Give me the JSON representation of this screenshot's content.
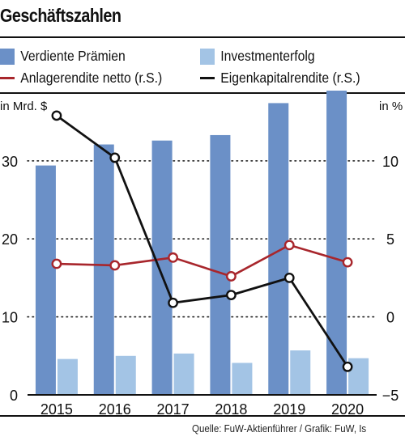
{
  "header": {
    "title": "Geschäftszahlen"
  },
  "legend": {
    "items": [
      {
        "label": "Verdiente Prämien",
        "color": "#6b90c7",
        "kind": "bar"
      },
      {
        "label": "Investmenterfolg",
        "color": "#a3c4e5",
        "kind": "bar"
      },
      {
        "label": "Anlagerendite netto (r.S.)",
        "color": "#a8262c",
        "kind": "line"
      },
      {
        "label": "Eigenkapitalrendite (r.S.)",
        "color": "#111111",
        "kind": "line"
      }
    ]
  },
  "footer": {
    "source": "Quelle: FuW-Aktienführer / Grafik: FuW, Is"
  },
  "chart_data": {
    "type": "bar",
    "title": "Geschäftszahlen",
    "categories": [
      "2015",
      "2016",
      "2017",
      "2018",
      "2019",
      "2020"
    ],
    "y_left": {
      "label": "in Mrd. $",
      "ylim": [
        0,
        39
      ],
      "ticks": [
        0,
        10,
        20,
        30
      ]
    },
    "y_right": {
      "label": "in %",
      "ylim": [
        -5,
        14.5
      ],
      "ticks": [
        -5,
        0,
        5,
        10
      ]
    },
    "grid": "dotted horizontal at left-axis ticks",
    "legend_position": "top",
    "series": [
      {
        "name": "Verdiente Prämien",
        "type": "bar",
        "axis": "left",
        "color": "#6b90c7",
        "values": [
          29.4,
          32.1,
          32.6,
          33.3,
          37.4,
          39.0
        ]
      },
      {
        "name": "Investmenterfolg",
        "type": "bar",
        "axis": "left",
        "color": "#a3c4e5",
        "values": [
          4.6,
          5.0,
          5.3,
          4.1,
          5.7,
          4.7
        ]
      },
      {
        "name": "Anlagerendite netto (r.S.)",
        "type": "line",
        "axis": "right",
        "color": "#a8262c",
        "values": [
          3.4,
          3.3,
          3.8,
          2.6,
          4.6,
          3.5
        ]
      },
      {
        "name": "Eigenkapitalrendite (r.S.)",
        "type": "line",
        "axis": "right",
        "color": "#111111",
        "values": [
          12.9,
          10.2,
          0.9,
          1.4,
          2.5,
          -3.2
        ]
      }
    ]
  }
}
